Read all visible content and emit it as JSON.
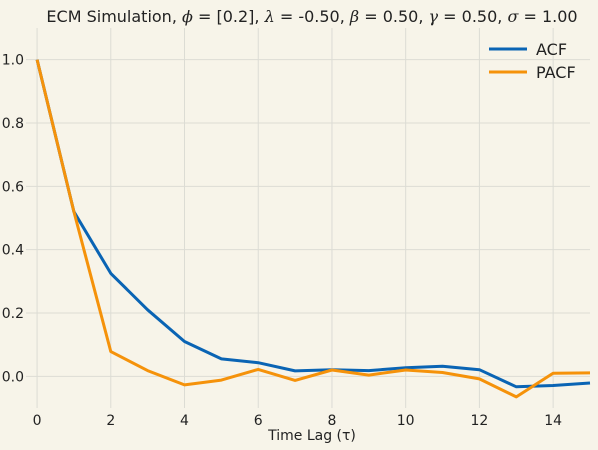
{
  "chart_data": {
    "type": "line",
    "title_parts": [
      {
        "t": "ECM Simulation, ",
        "i": false
      },
      {
        "t": "ϕ",
        "i": true
      },
      {
        "t": " = [0.2], ",
        "i": false
      },
      {
        "t": "λ",
        "i": true
      },
      {
        "t": " = -0.50, ",
        "i": false
      },
      {
        "t": "β",
        "i": true
      },
      {
        "t": " = 0.50, ",
        "i": false
      },
      {
        "t": "γ",
        "i": true
      },
      {
        "t": " = 0.50, ",
        "i": false
      },
      {
        "t": "σ",
        "i": true
      },
      {
        "t": " = 1.00",
        "i": false
      }
    ],
    "xlabel": "Time Lag (τ)",
    "ylabel": "",
    "xlim": [
      -0.3,
      15
    ],
    "ylim": [
      -0.1,
      1.1
    ],
    "xticks": [
      0,
      2,
      4,
      6,
      8,
      10,
      12,
      14
    ],
    "xtick_labels": [
      "0",
      "2",
      "4",
      "6",
      "8",
      "10",
      "12",
      "14"
    ],
    "yticks": [
      0.0,
      0.2,
      0.4,
      0.6,
      0.8,
      1.0
    ],
    "ytick_labels": [
      "0.0",
      "0.2",
      "0.4",
      "0.6",
      "0.8",
      "1.0"
    ],
    "grid": true,
    "legend_position": "top-right",
    "x": [
      0,
      1,
      2,
      3,
      4,
      5,
      6,
      7,
      8,
      9,
      10,
      11,
      12,
      13,
      14,
      15
    ],
    "series": [
      {
        "name": "ACF",
        "color": "#0a64b4",
        "values": [
          1.0,
          0.52,
          0.325,
          0.21,
          0.11,
          0.055,
          0.043,
          0.017,
          0.021,
          0.018,
          0.027,
          0.032,
          0.021,
          -0.033,
          -0.029,
          -0.021
        ]
      },
      {
        "name": "PACF",
        "color": "#f5920a",
        "values": [
          1.0,
          0.52,
          0.078,
          0.018,
          -0.027,
          -0.012,
          0.022,
          -0.013,
          0.02,
          0.004,
          0.02,
          0.012,
          -0.008,
          -0.065,
          0.01,
          0.011
        ]
      }
    ]
  }
}
